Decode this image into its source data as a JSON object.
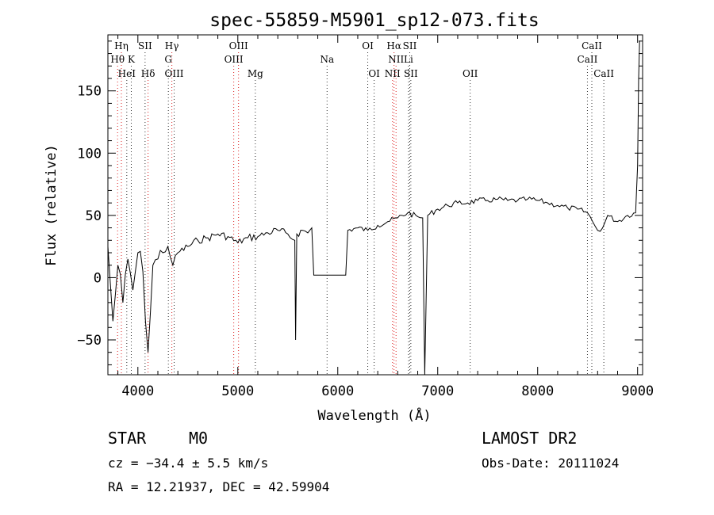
{
  "chart_data": {
    "type": "line",
    "title": "spec-55859-M5901_sp12-073.fits",
    "xlabel": "Wavelength (Å)",
    "ylabel": "Flux (relative)",
    "xlim": [
      3700,
      9050
    ],
    "ylim": [
      -78,
      195
    ],
    "xticks": [
      4000,
      5000,
      6000,
      7000,
      8000,
      9000
    ],
    "xtick_labels": [
      "4000",
      "5000",
      "6000",
      "7000",
      "8000",
      "9000"
    ],
    "yticks": [
      -50,
      0,
      50,
      100,
      150
    ],
    "ytick_labels": [
      "−50",
      "0",
      "50",
      "100",
      "150"
    ],
    "grid": false,
    "spectrum": {
      "x": [
        3700,
        3750,
        3800,
        3850,
        3900,
        3950,
        4000,
        4050,
        4102,
        4150,
        4200,
        4250,
        4300,
        4350,
        4400,
        4500,
        4600,
        4700,
        4800,
        4900,
        5000,
        5100,
        5200,
        5300,
        5400,
        5500,
        5570,
        5578,
        5590,
        5650,
        5700,
        5740,
        5760,
        6080,
        6100,
        6200,
        6300,
        6400,
        6500,
        6600,
        6700,
        6800,
        6850,
        6870,
        6900,
        7000,
        7100,
        7200,
        7300,
        7400,
        7500,
        7600,
        7700,
        7800,
        7900,
        8000,
        8100,
        8200,
        8300,
        8400,
        8500,
        8550,
        8600,
        8650,
        8700,
        8800,
        8900,
        8980,
        9000,
        9010,
        9020
      ],
      "y": [
        25,
        -35,
        10,
        -20,
        15,
        -10,
        20,
        5,
        -60,
        10,
        15,
        20,
        25,
        10,
        20,
        25,
        30,
        32,
        35,
        33,
        28,
        32,
        33,
        36,
        38,
        35,
        30,
        -50,
        35,
        38,
        36,
        40,
        2,
        2,
        38,
        40,
        38,
        42,
        45,
        48,
        52,
        49,
        48,
        -82,
        50,
        55,
        58,
        60,
        60,
        62,
        62,
        63,
        62,
        62,
        63,
        62,
        60,
        58,
        56,
        55,
        52,
        45,
        38,
        40,
        50,
        45,
        50,
        52,
        90,
        160,
        190
      ]
    },
    "line_markers": [
      {
        "name": "Hη",
        "x": 3835,
        "tier": 1,
        "color": "#d22"
      },
      {
        "name": "Hθ",
        "x": 3797,
        "tier": 2,
        "color": "#d22"
      },
      {
        "name": "HeI",
        "x": 3889,
        "tier": 3,
        "color": "#333"
      },
      {
        "name": "K",
        "x": 3934,
        "tier": 2,
        "color": "#333"
      },
      {
        "name": "SII",
        "x": 4072,
        "tier": 1,
        "color": "#333"
      },
      {
        "name": "Hδ",
        "x": 4102,
        "tier": 3,
        "color": "#d22"
      },
      {
        "name": "Hγ",
        "x": 4340,
        "tier": 1,
        "color": "#d22"
      },
      {
        "name": "G",
        "x": 4305,
        "tier": 2,
        "color": "#333"
      },
      {
        "name": "OIII",
        "x": 4363,
        "tier": 3,
        "color": "#333"
      },
      {
        "name": "OIII",
        "x": 5007,
        "tier": 1,
        "color": "#d22"
      },
      {
        "name": "OIII",
        "x": 4959,
        "tier": 2,
        "color": "#d22"
      },
      {
        "name": "Mg",
        "x": 5175,
        "tier": 3,
        "color": "#333"
      },
      {
        "name": "Na",
        "x": 5893,
        "tier": 2,
        "color": "#333"
      },
      {
        "name": "OI",
        "x": 6300,
        "tier": 1,
        "color": "#333"
      },
      {
        "name": "OI",
        "x": 6364,
        "tier": 3,
        "color": "#333"
      },
      {
        "name": "Hα",
        "x": 6563,
        "tier": 1,
        "color": "#d22"
      },
      {
        "name": "SII",
        "x": 6720,
        "tier": 1,
        "color": "#333"
      },
      {
        "name": "NII",
        "x": 6583,
        "tier": 2,
        "color": "#d22"
      },
      {
        "name": "Li",
        "x": 6708,
        "tier": 2,
        "color": "#333"
      },
      {
        "name": "NII",
        "x": 6548,
        "tier": 3,
        "color": "#d22"
      },
      {
        "name": "SII",
        "x": 6731,
        "tier": 3,
        "color": "#333"
      },
      {
        "name": "OII",
        "x": 7325,
        "tier": 3,
        "color": "#333"
      },
      {
        "name": "CaII",
        "x": 8542,
        "tier": 1,
        "color": "#333"
      },
      {
        "name": "CaII",
        "x": 8498,
        "tier": 2,
        "color": "#333"
      },
      {
        "name": "CaII",
        "x": 8662,
        "tier": 3,
        "color": "#333"
      }
    ]
  },
  "info": {
    "object_class": "STAR",
    "subclass": "M0",
    "survey": "LAMOST DR2",
    "cz": "cz = −34.4 ± 5.5 km/s",
    "obs_date": "Obs-Date: 20111024",
    "coords": "RA =  12.21937, DEC =  42.59904"
  },
  "colors": {
    "spectrum": "#000000",
    "axis": "#000000",
    "marker_hydrogen": "#d22222",
    "marker_other": "#333333"
  }
}
